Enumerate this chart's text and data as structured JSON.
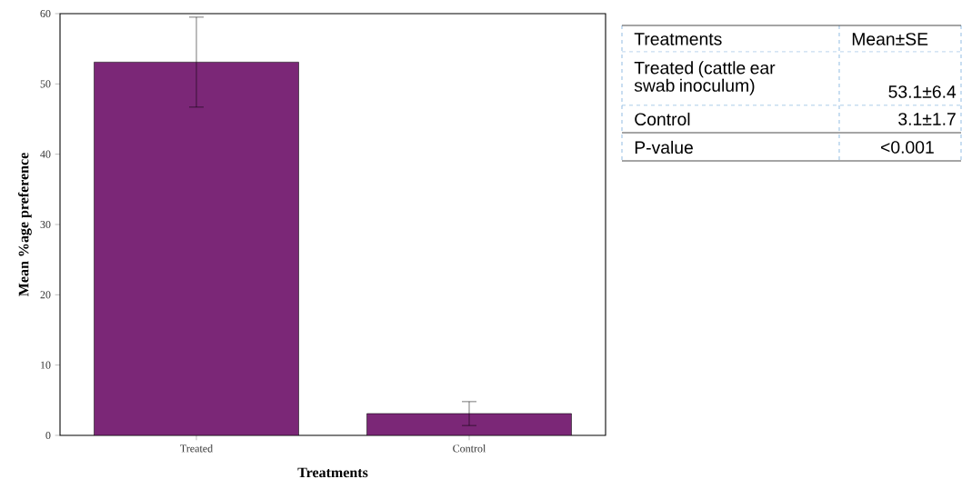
{
  "chart_data": {
    "type": "bar",
    "xlabel": "Treatments",
    "ylabel": "Mean %age preference",
    "categories": [
      "Treated",
      "Control"
    ],
    "values": [
      53.1,
      3.1
    ],
    "errors": [
      6.4,
      1.7
    ],
    "color": "#7b2777",
    "ylim": [
      0,
      60
    ],
    "yticks": [
      0,
      10,
      20,
      30,
      40,
      50,
      60
    ],
    "grid": false,
    "annotations": [
      "Treatments",
      "Mean±SE",
      "Treated (cattle ear swab inoculum)",
      "53.1±6.4",
      "Control",
      "3.1±1.7",
      "P-value",
      "<0.001"
    ]
  }
}
